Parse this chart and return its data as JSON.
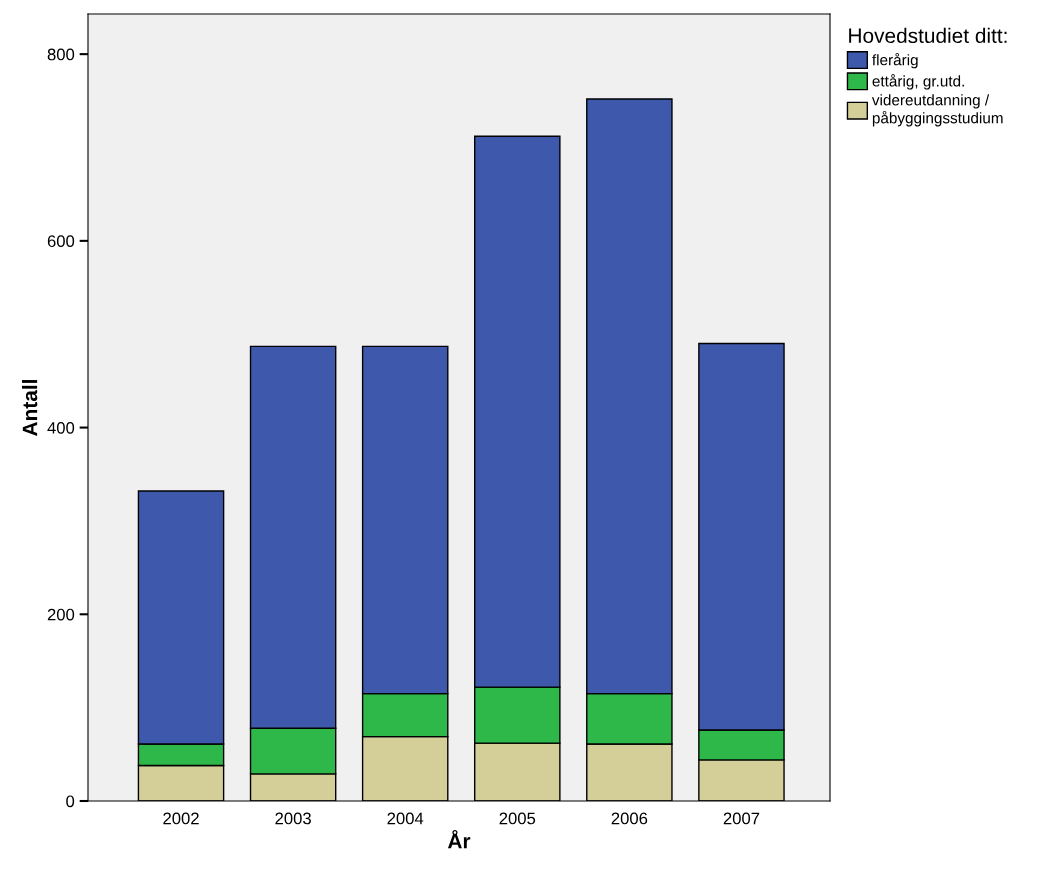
{
  "chart_data": {
    "type": "bar",
    "stacked": true,
    "xlabel": "År",
    "ylabel": "Antall",
    "legend_title": "Hovedstudiet ditt:",
    "categories": [
      "2002",
      "2003",
      "2004",
      "2005",
      "2006",
      "2007"
    ],
    "series": [
      {
        "name": "videreutdanning /\npåbyggingsstudium",
        "color": "#d4cf99",
        "values": [
          38,
          29,
          69,
          62,
          61,
          44
        ]
      },
      {
        "name": "ettårig, gr.utd.",
        "color": "#2fb84a",
        "values": [
          23,
          49,
          46,
          60,
          54,
          32
        ]
      },
      {
        "name": "flerårig",
        "color": "#3e58ac",
        "values": [
          271,
          409,
          372,
          590,
          637,
          414
        ]
      }
    ],
    "ylim": [
      0,
      843
    ],
    "yticks": [
      0,
      200,
      400,
      600,
      800
    ],
    "grid": false,
    "legend": "top right"
  }
}
